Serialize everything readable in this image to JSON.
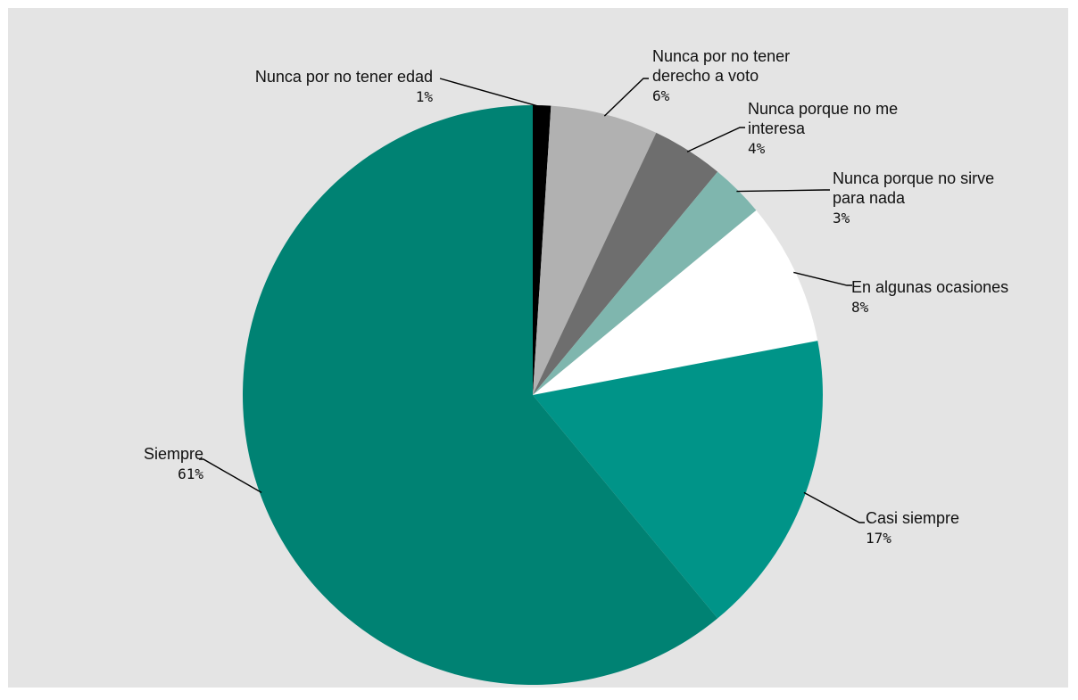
{
  "chart_data": {
    "type": "pie",
    "title": "",
    "slices": [
      {
        "label": [
          "Nunca por no tener edad"
        ],
        "value": 1,
        "value_label": "1%",
        "color": "#000000"
      },
      {
        "label": [
          "Nunca por no tener",
          "derecho a voto"
        ],
        "value": 6,
        "value_label": "6%",
        "color": "#b1b1b1"
      },
      {
        "label": [
          "Nunca porque no me",
          "interesa"
        ],
        "value": 4,
        "value_label": "4%",
        "color": "#6e6e6e"
      },
      {
        "label": [
          "Nunca porque no sirve",
          "para nada"
        ],
        "value": 3,
        "value_label": "3%",
        "color": "#7fb6ae"
      },
      {
        "label": [
          "En algunas ocasiones"
        ],
        "value": 8,
        "value_label": "8%",
        "color": "#ffffff"
      },
      {
        "label": [
          "Casi siempre"
        ],
        "value": 17,
        "value_label": "17%",
        "color": "#009488"
      },
      {
        "label": [
          "Siempre"
        ],
        "value": 61,
        "value_label": "61%",
        "color": "#008273"
      }
    ],
    "start_angle_deg": 0,
    "direction": "clockwise",
    "legend": "none",
    "background": "#e4e4e4"
  }
}
